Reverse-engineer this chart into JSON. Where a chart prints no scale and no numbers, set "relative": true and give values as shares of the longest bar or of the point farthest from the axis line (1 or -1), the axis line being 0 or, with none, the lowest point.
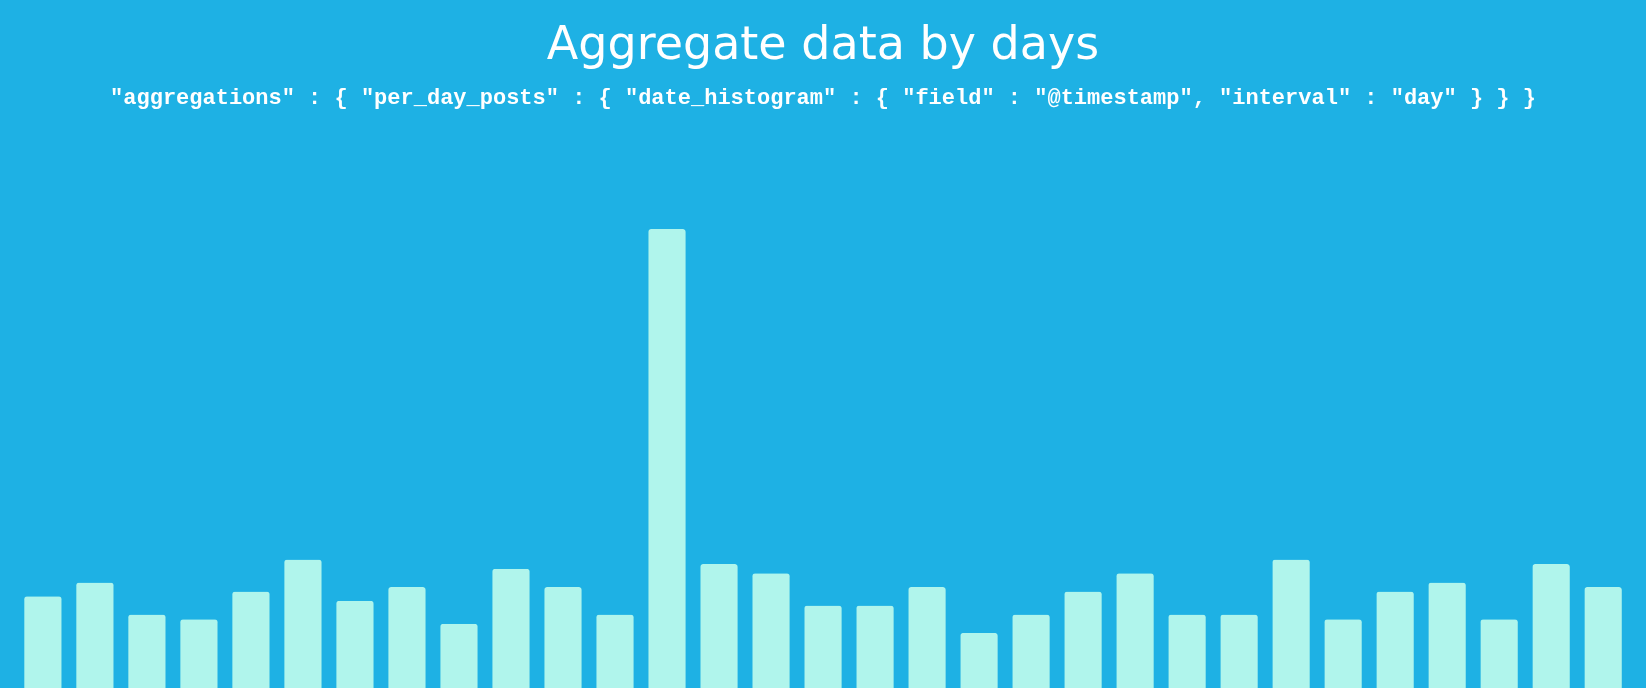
{
  "chart_data": {
    "type": "bar",
    "title": "Aggregate data by days",
    "subtitle": "\"aggregations\" : { \"per_day_posts\" : { \"date_histogram\" : { \"field\" : \"@timestamp\", \"interval\" : \"day\" } } }",
    "relative": true,
    "color": "#b0f5ec",
    "grid": false,
    "categories": [
      null,
      null,
      null,
      null,
      null,
      null,
      null,
      null,
      null,
      null,
      null,
      null,
      null,
      null,
      null,
      null,
      null,
      null,
      null,
      null,
      null,
      null,
      null,
      null,
      null,
      null,
      null,
      null,
      null,
      null,
      null
    ],
    "values": [
      0.2,
      0.23,
      0.16,
      0.15,
      0.21,
      0.28,
      0.19,
      0.22,
      0.14,
      0.26,
      0.22,
      0.16,
      1,
      0.27,
      0.25,
      0.18,
      0.18,
      0.22,
      0.12,
      0.16,
      0.21,
      0.25,
      0.16,
      0.16,
      0.28,
      0.15,
      0.21,
      0.23,
      0.15,
      0.27,
      0.22
    ]
  }
}
